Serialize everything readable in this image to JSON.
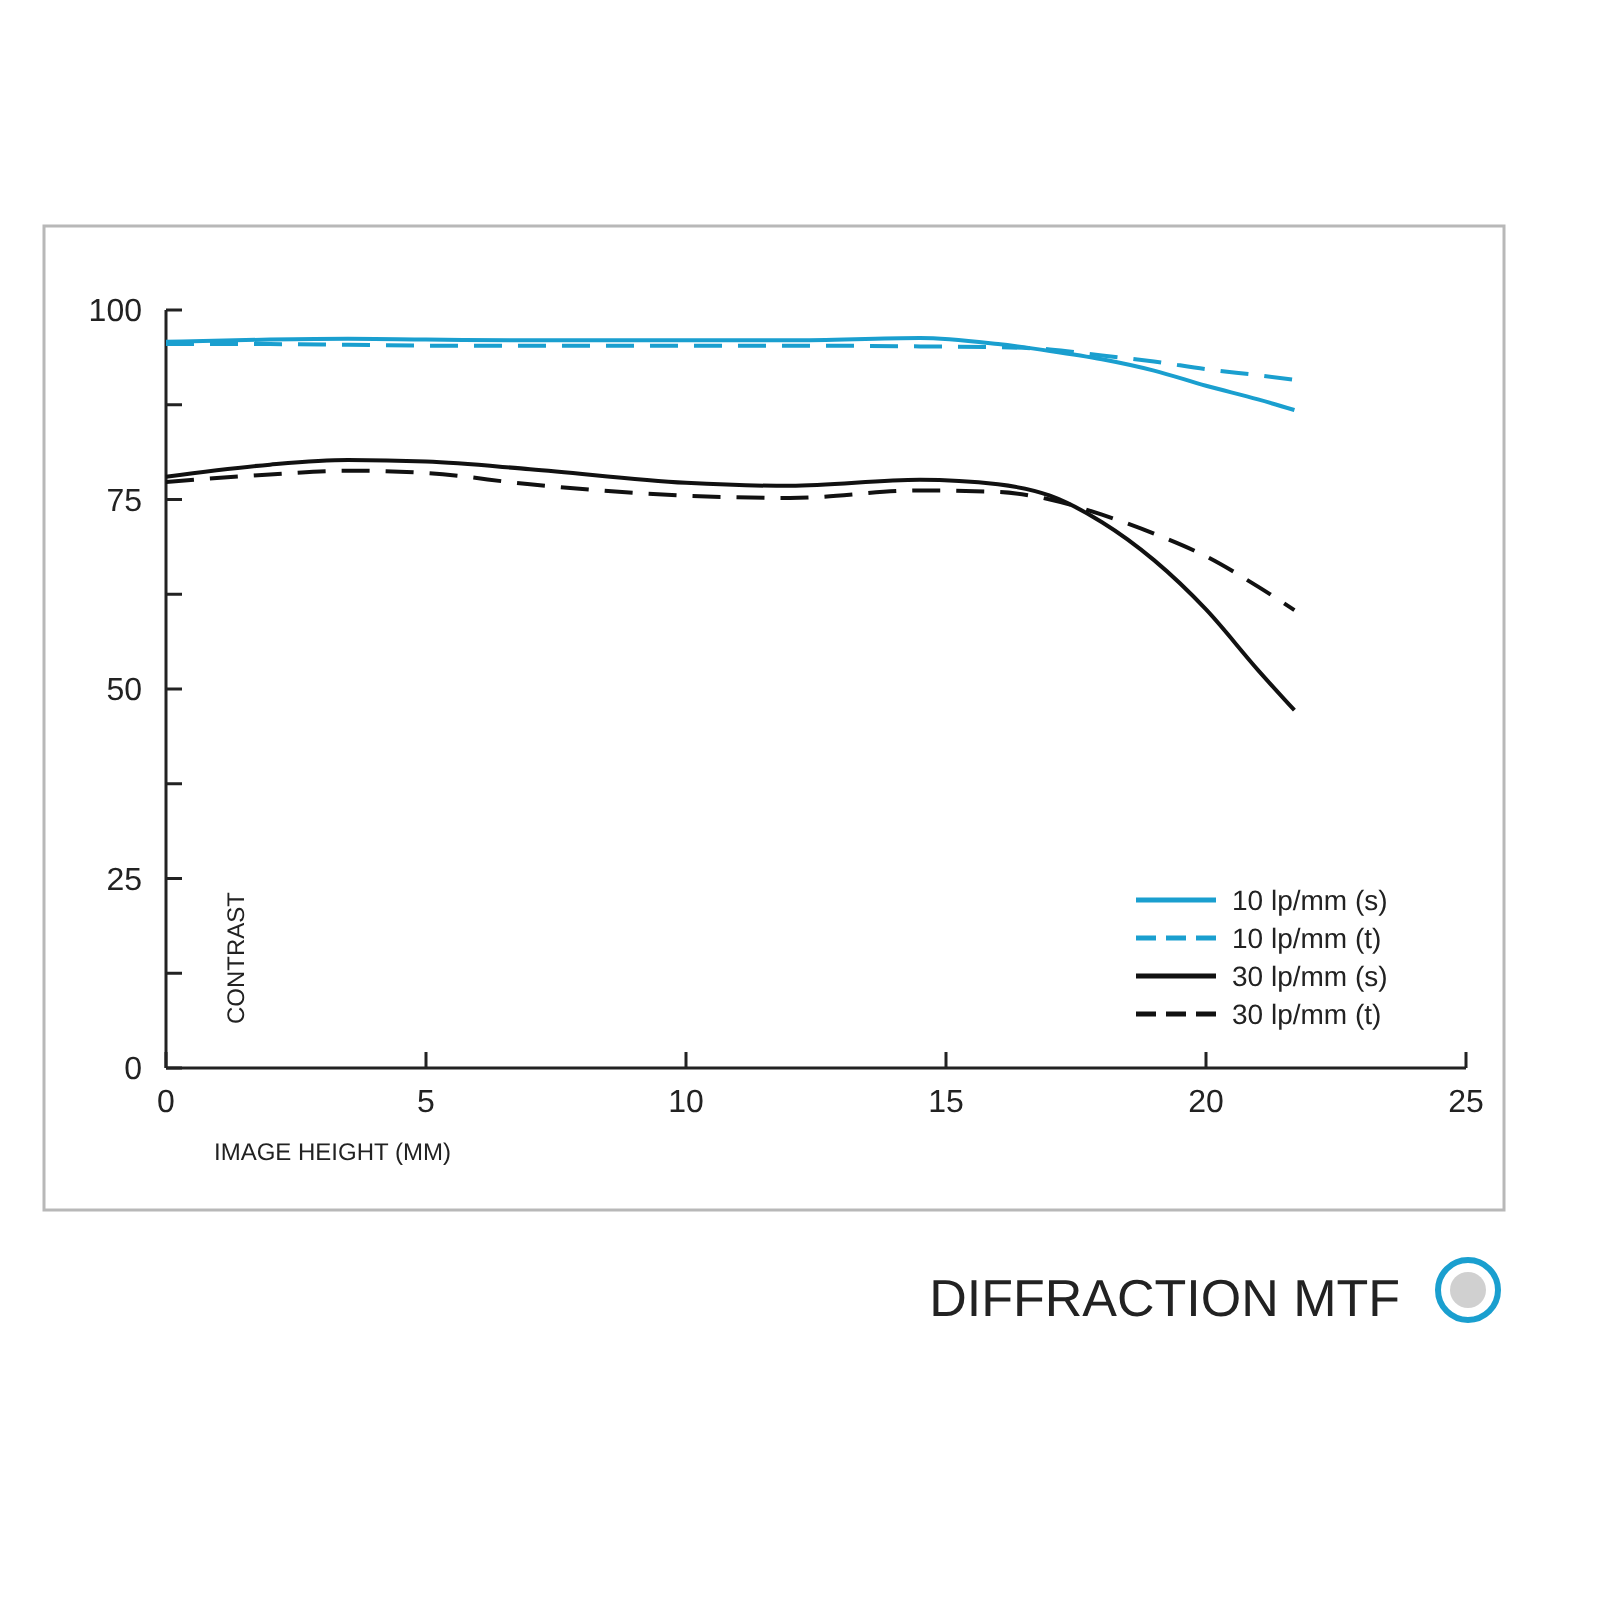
{
  "chart_data": {
    "type": "line",
    "title": "DIFFRACTION MTF",
    "xlabel": "IMAGE HEIGHT (MM)",
    "ylabel": "CONTRAST",
    "xlim": [
      0,
      25
    ],
    "ylim": [
      0,
      100
    ],
    "xticks": [
      0,
      5,
      10,
      15,
      20,
      25
    ],
    "yticks": [
      0,
      {
        "value": 12.5,
        "label": null
      },
      25,
      {
        "value": 37.5,
        "label": null
      },
      50,
      {
        "value": 62.5,
        "label": null
      },
      75,
      {
        "value": 87.5,
        "label": null
      },
      100
    ],
    "grid": false,
    "legend": "bottom right",
    "marker": "none",
    "x": [
      0,
      2,
      3.5,
      5,
      7,
      10,
      12,
      14.5,
      16,
      17,
      18,
      19,
      20,
      21,
      21.7
    ],
    "series": [
      {
        "name": "10 lp/mm (s)",
        "color": "#1a9fcf",
        "line_style": "solid",
        "values": [
          95.8,
          96.1,
          96.2,
          96.1,
          96,
          96,
          96,
          96.3,
          95.5,
          94.6,
          93.5,
          92,
          90,
          88.2,
          86.8
        ]
      },
      {
        "name": "10 lp/mm (t)",
        "color": "#1a9fcf",
        "line_style": "dashed",
        "values": [
          95.5,
          95.5,
          95.4,
          95.3,
          95.3,
          95.3,
          95.3,
          95.2,
          95.1,
          94.8,
          94,
          93.2,
          92.2,
          91.4,
          90.8
        ]
      },
      {
        "name": "30 lp/mm (s)",
        "color": "#111111",
        "line_style": "solid",
        "values": [
          78,
          79.6,
          80.2,
          80,
          79,
          77.2,
          76.8,
          77.6,
          77,
          75.5,
          72,
          67,
          60.5,
          52.5,
          47.2
        ]
      },
      {
        "name": "30 lp/mm (t)",
        "color": "#111111",
        "line_style": "dashed",
        "values": [
          77.3,
          78.3,
          78.8,
          78.5,
          77,
          75.5,
          75.2,
          76.2,
          76,
          75,
          73,
          70.5,
          67.5,
          63.5,
          60.4
        ]
      }
    ]
  }
}
